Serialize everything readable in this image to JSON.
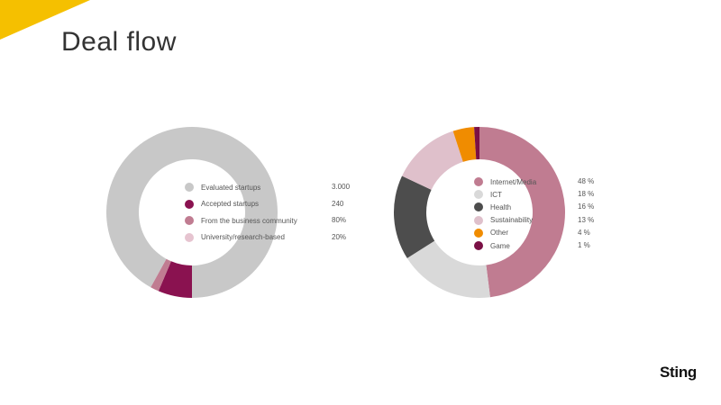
{
  "page": {
    "title": "Deal flow",
    "logo": "Sting"
  },
  "colors": {
    "accent": "#f5c000"
  },
  "chart_data": [
    {
      "type": "pie",
      "series": [
        {
          "label": "Evaluated startups",
          "value_text": "3.000",
          "color": "#c8c8c8"
        },
        {
          "label": "Accepted startups",
          "value_text": "240",
          "value": 240,
          "color": "#8a1250"
        },
        {
          "label": "From the business community",
          "value_text": "80%",
          "color": "#c07c91"
        },
        {
          "label": "University/research-based",
          "value_text": "20%",
          "color": "#e6c4d0"
        }
      ]
    },
    {
      "type": "pie",
      "series": [
        {
          "label": "Internet/Media",
          "value_text": "48 %",
          "value": 48,
          "color": "#c07c91"
        },
        {
          "label": "ICT",
          "value_text": "18 %",
          "value": 18,
          "color": "#d9d9d9"
        },
        {
          "label": "Health",
          "value_text": "16 %",
          "value": 16,
          "color": "#4d4d4d"
        },
        {
          "label": "Sustainability",
          "value_text": "13 %",
          "value": 13,
          "color": "#dfc0cb"
        },
        {
          "label": "Other",
          "value_text": "4 %",
          "value": 4,
          "color": "#f08c00"
        },
        {
          "label": "Game",
          "value_text": "1 %",
          "value": 1,
          "color": "#7a1045"
        }
      ]
    }
  ]
}
